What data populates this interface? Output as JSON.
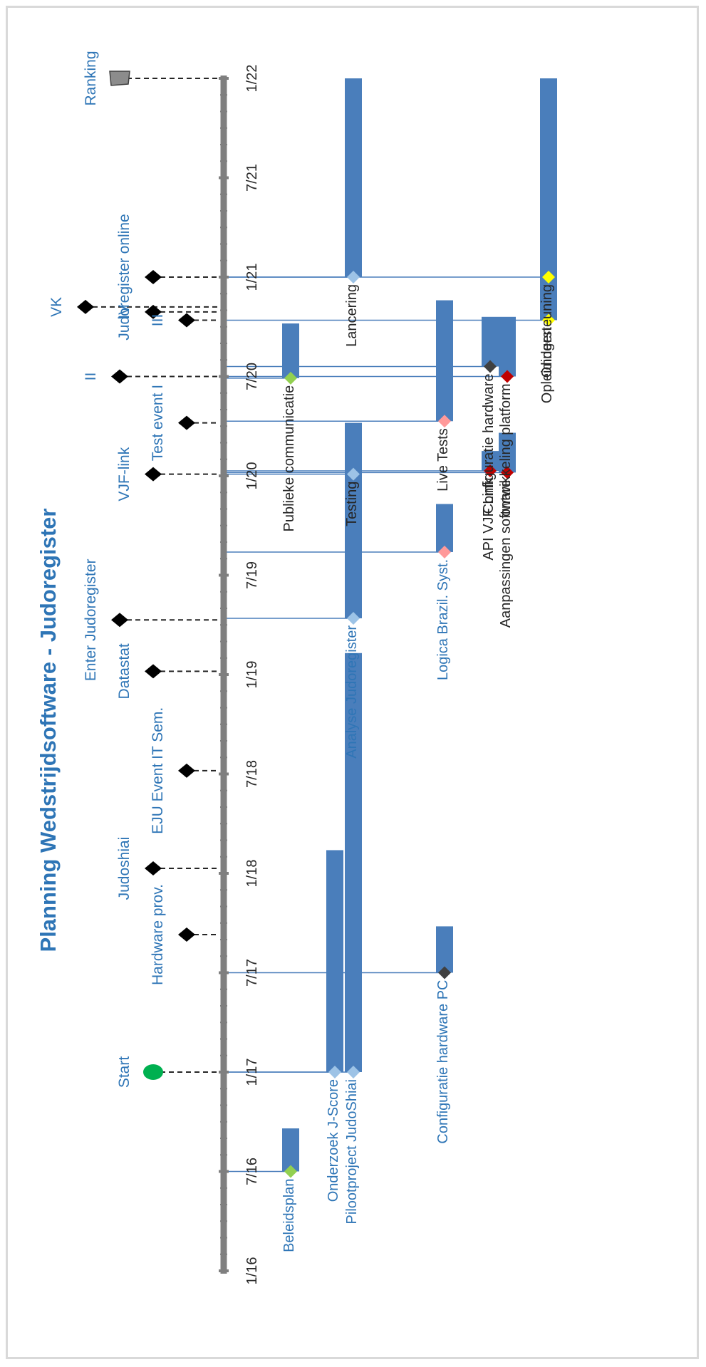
{
  "chart_data": {
    "type": "timeline",
    "title": "Planning Wedstrijdsoftware - Judoregister",
    "time_unit": "months since 1/16",
    "axis": {
      "range": [
        0,
        72
      ],
      "ticks": [
        {
          "label": "1/16",
          "t": 0
        },
        {
          "label": "7/16",
          "t": 6
        },
        {
          "label": "1/17",
          "t": 12
        },
        {
          "label": "7/17",
          "t": 18
        },
        {
          "label": "1/18",
          "t": 24
        },
        {
          "label": "7/18",
          "t": 30
        },
        {
          "label": "1/19",
          "t": 36
        },
        {
          "label": "7/19",
          "t": 42
        },
        {
          "label": "1/20",
          "t": 48
        },
        {
          "label": "7/20",
          "t": 54
        },
        {
          "label": "1/21",
          "t": 60
        },
        {
          "label": "7/21",
          "t": 66
        },
        {
          "label": "1/22",
          "t": 72
        }
      ]
    },
    "milestones": [
      {
        "label": "Start",
        "t": 12,
        "lane": 1,
        "shape": "circle",
        "color": "#00b050"
      },
      {
        "label": "Hardware prov.",
        "t": 20.3,
        "lane": 0,
        "shape": "diamond",
        "color": "#000000"
      },
      {
        "label": "Judoshiai",
        "t": 24.3,
        "lane": 1,
        "shape": "diamond",
        "color": "#000000"
      },
      {
        "label": "EJU Event IT Sem.",
        "t": 30.2,
        "lane": 0,
        "shape": "diamond",
        "color": "#000000"
      },
      {
        "label": "Datastat",
        "t": 36.2,
        "lane": 1,
        "shape": "diamond",
        "color": "#000000"
      },
      {
        "label": "Enter Judoregister",
        "t": 39.3,
        "lane": 2,
        "shape": "diamond",
        "color": "#000000"
      },
      {
        "label": "VJF-link",
        "t": 48.1,
        "lane": 1,
        "shape": "diamond",
        "color": "#000000"
      },
      {
        "label": "Test event I",
        "t": 51.2,
        "lane": 0,
        "shape": "diamond",
        "color": "#000000"
      },
      {
        "label": "II",
        "t": 54,
        "lane": 2,
        "shape": "diamond",
        "color": "#000000"
      },
      {
        "label": "III",
        "t": 57.4,
        "lane": 0,
        "shape": "diamond",
        "color": "#000000"
      },
      {
        "label": "IV",
        "t": 57.9,
        "lane": 1,
        "shape": "diamond",
        "color": "#000000"
      },
      {
        "label": "VK",
        "t": 58.2,
        "lane": 3,
        "shape": "diamond",
        "color": "#000000"
      },
      {
        "label": "Judoregister online",
        "t": 60,
        "lane": 1,
        "shape": "diamond",
        "color": "#000000"
      },
      {
        "label": "Ranking",
        "t": 72,
        "lane": 2,
        "shape": "flag",
        "color": "#7f7f7f"
      }
    ],
    "tasks": [
      {
        "label": "Beleidsplan",
        "start": 6,
        "end": 8.6,
        "track": 0,
        "marker_color": "#92d050",
        "label_color": "#2e75b6"
      },
      {
        "label": "Onderzoek J-Score",
        "start": 12,
        "end": 25.4,
        "track": 1,
        "marker_color": "#9dc3e6",
        "label_color": "#2e75b6"
      },
      {
        "label": "Pilootproject JudoShiai",
        "start": 12,
        "end": 37.3,
        "track": 2,
        "marker_color": "#9dc3e6",
        "label_color": "#2e75b6"
      },
      {
        "label": "Configuratie hardware PC",
        "start": 18,
        "end": 20.8,
        "track": 3,
        "marker_color": "#404040",
        "label_color": "#2e75b6"
      },
      {
        "label": "Analyse Judoregister",
        "start": 39.4,
        "end": 48.3,
        "track": 2,
        "marker_color": "#9dc3e6",
        "label_color": "#2e75b6"
      },
      {
        "label": "Logica Brazil. Syst.",
        "start": 43.4,
        "end": 46.3,
        "track": 3,
        "marker_color": "#ff9999",
        "label_color": "#2e75b6"
      },
      {
        "label": "Testing",
        "start": 48.1,
        "end": 51.2,
        "track": 2,
        "marker_color": "#9dc3e6",
        "label_color": "#262626"
      },
      {
        "label": "API VJF Link",
        "start": 48.3,
        "end": 49.5,
        "track": 4,
        "marker_color": "#c00000",
        "label_color": "#262626"
      },
      {
        "label": "Aanpassingen software",
        "start": 48.2,
        "end": 50.6,
        "track": 5,
        "marker_color": "#c00000",
        "label_color": "#262626"
      },
      {
        "label": "Publieke communicatie",
        "start": 53.9,
        "end": 57.2,
        "track": 0,
        "marker_color": "#92d050",
        "label_color": "#262626"
      },
      {
        "label": "Live Tests",
        "start": 51.3,
        "end": 58.6,
        "track": 3,
        "marker_color": "#ff9999",
        "label_color": "#262626"
      },
      {
        "label": "Configuratie hardware",
        "start": 54.6,
        "end": 57.6,
        "track": 4,
        "marker_color": "#404040",
        "label_color": "#262626"
      },
      {
        "label": "ontwikkeling platform",
        "start": 54,
        "end": 57.6,
        "track": 5,
        "marker_color": "#c00000",
        "label_color": "#262626"
      },
      {
        "label": "Lancering",
        "start": 60,
        "end": 72,
        "track": 2,
        "marker_color": "#9dc3e6",
        "label_color": "#262626"
      },
      {
        "label": "Opleidingen",
        "start": 57.4,
        "end": 60,
        "track": 6,
        "marker_color": "#ffff00",
        "label_color": "#262626"
      },
      {
        "label": "Ondersteuning",
        "start": 60,
        "end": 72,
        "track": 6,
        "marker_color": "#ffff00",
        "label_color": "#262626"
      }
    ]
  },
  "colors": {
    "bar": "#4a7ebb",
    "axis": "#7f7f7f",
    "title": "#2e75b6",
    "label_blue": "#2e75b6",
    "label_dark": "#262626",
    "connector": "#4a7ebb"
  }
}
